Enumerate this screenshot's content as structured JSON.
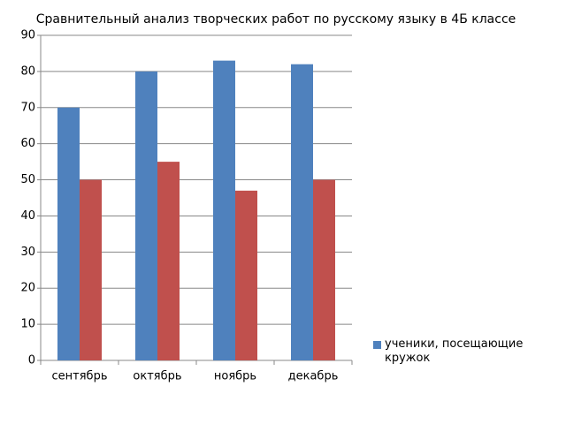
{
  "chart_data": {
    "type": "bar",
    "title": "Сравнительный анализ творческих работ по русскому языку в 4Б классе",
    "categories": [
      "сентябрь",
      "октябрь",
      "ноябрь",
      "декабрь"
    ],
    "series": [
      {
        "name": "ученики, посещающие кружок",
        "color": "#4f81bd",
        "values": [
          70,
          80,
          83,
          82
        ]
      },
      {
        "color": "#c0504d",
        "values": [
          50,
          55,
          47,
          50
        ]
      }
    ],
    "ylim": [
      0,
      90
    ],
    "yticks": [
      0,
      10,
      20,
      30,
      40,
      50,
      60,
      70,
      80,
      90
    ],
    "grid": true,
    "legend": "right"
  }
}
